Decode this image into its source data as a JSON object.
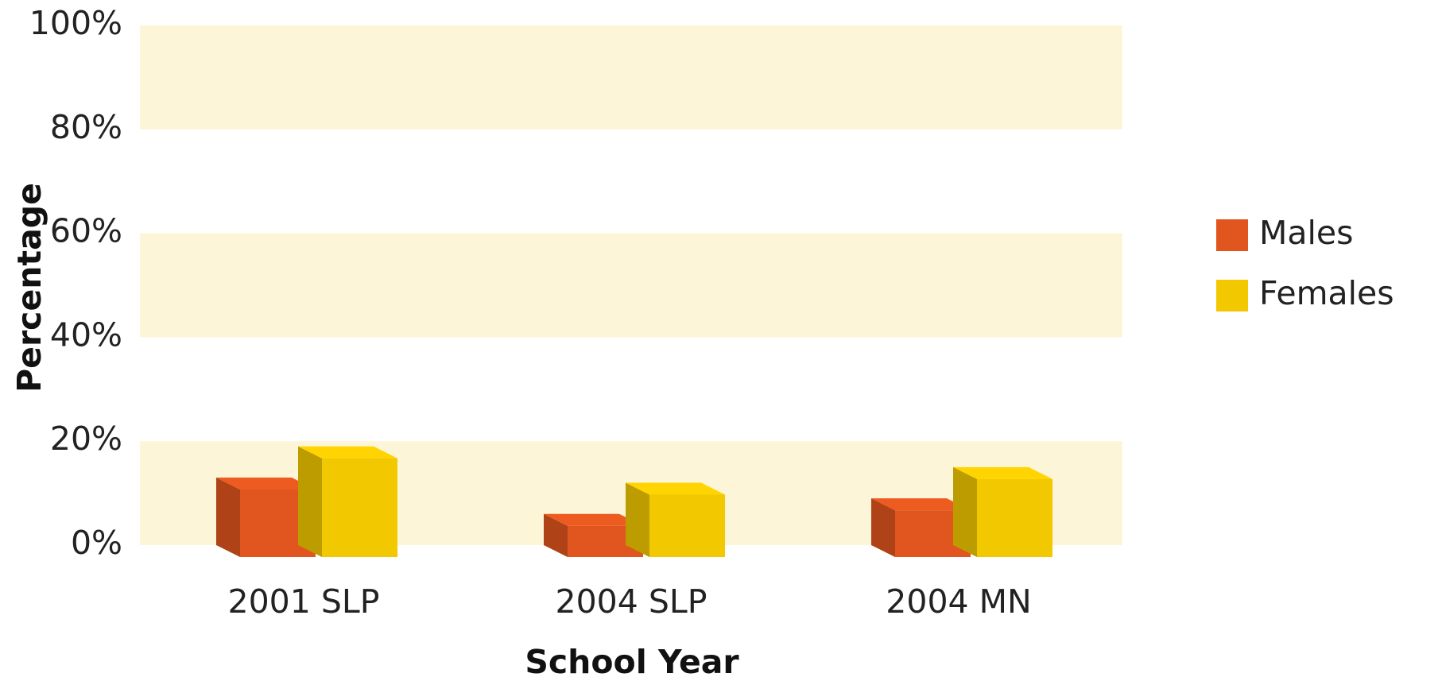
{
  "chart_data": {
    "type": "bar3d",
    "x_label": "School Year",
    "y_label": "Percentage",
    "categories": [
      "2001 SLP",
      "2004 SLP",
      "2004 MN"
    ],
    "series": [
      {
        "name": "Males",
        "color": "#e0561e",
        "values": [
          13,
          6,
          9
        ]
      },
      {
        "name": "Females",
        "color": "#f2c800",
        "values": [
          19,
          12,
          15
        ]
      }
    ],
    "ylim": [
      0,
      100
    ],
    "yticks": [
      {
        "value": 0,
        "label": "0%"
      },
      {
        "value": 20,
        "label": "20%"
      },
      {
        "value": 40,
        "label": "40%"
      },
      {
        "value": 60,
        "label": "60%"
      },
      {
        "value": 80,
        "label": "80%"
      },
      {
        "value": 100,
        "label": "100%"
      }
    ],
    "grid": true,
    "legend": "right"
  }
}
